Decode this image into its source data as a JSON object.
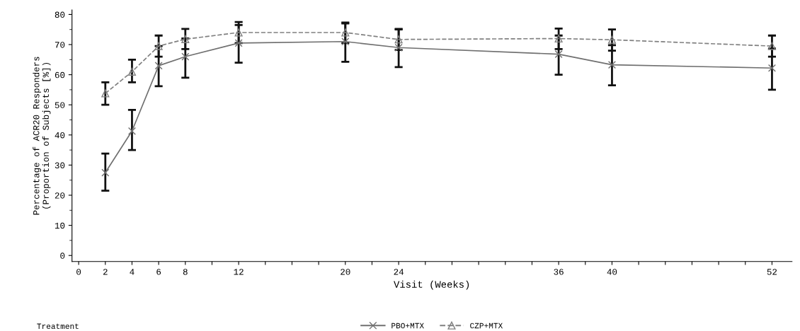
{
  "chart_data": {
    "type": "line",
    "xlabel": "Visit (Weeks)",
    "ylabel": "Percentage of ACR20 Responders\n(Proportion of Subjects [%])",
    "legend_title": "Treatment",
    "legend": "bottom",
    "grid": false,
    "x": [
      2,
      4,
      6,
      8,
      12,
      20,
      24,
      36,
      40,
      52
    ],
    "xlim": [
      -0.5,
      53.5
    ],
    "ylim": [
      -2,
      81.5
    ],
    "xticks": [
      0,
      2,
      4,
      6,
      8,
      {
        "value": 10,
        "label": null
      },
      12,
      {
        "value": 14,
        "label": null
      },
      {
        "value": 16,
        "label": null
      },
      {
        "value": 18,
        "label": null
      },
      20,
      {
        "value": 22,
        "label": null
      },
      24,
      {
        "value": 26,
        "label": null
      },
      {
        "value": 28,
        "label": null
      },
      {
        "value": 30,
        "label": null
      },
      {
        "value": 32,
        "label": null
      },
      {
        "value": 34,
        "label": null
      },
      36,
      {
        "value": 38,
        "label": null
      },
      40,
      {
        "value": 42,
        "label": null
      },
      {
        "value": 44,
        "label": null
      },
      {
        "value": 46,
        "label": null
      },
      {
        "value": 48,
        "label": null
      },
      {
        "value": 50,
        "label": null
      },
      52
    ],
    "yticks": [
      0,
      10,
      20,
      30,
      40,
      50,
      60,
      70,
      80
    ],
    "series": [
      {
        "name": "PBO+MTX",
        "color": "#707070",
        "marker": "cross",
        "line_style": "solid",
        "values": [
          27.5,
          41.3,
          63,
          66,
          70.5,
          71,
          69,
          66.8,
          63.3,
          62.2
        ],
        "errors": [
          [
            21.5,
            33.8
          ],
          [
            35,
            48.3
          ],
          [
            56.2,
            69.5
          ],
          [
            59,
            72
          ],
          [
            64,
            76.5
          ],
          [
            64.3,
            77
          ],
          [
            62.5,
            75
          ],
          [
            60,
            73
          ],
          [
            56.5,
            69.8
          ],
          [
            55,
            68.7
          ]
        ]
      },
      {
        "name": "CZP+MTX",
        "color": "#808080",
        "marker": "triangle",
        "line_style": "dashed",
        "values": [
          53.8,
          61,
          69.5,
          71.8,
          74,
          74,
          71.7,
          72,
          71.6,
          69.5
        ],
        "errors": [
          [
            50,
            57.5
          ],
          [
            57.5,
            65
          ],
          [
            66,
            73
          ],
          [
            68.5,
            75.2
          ],
          [
            70.5,
            77.5
          ],
          [
            70.5,
            77.3
          ],
          [
            68.2,
            75.2
          ],
          [
            68.5,
            75.3
          ],
          [
            68,
            75
          ],
          [
            66,
            73
          ]
        ]
      }
    ]
  }
}
